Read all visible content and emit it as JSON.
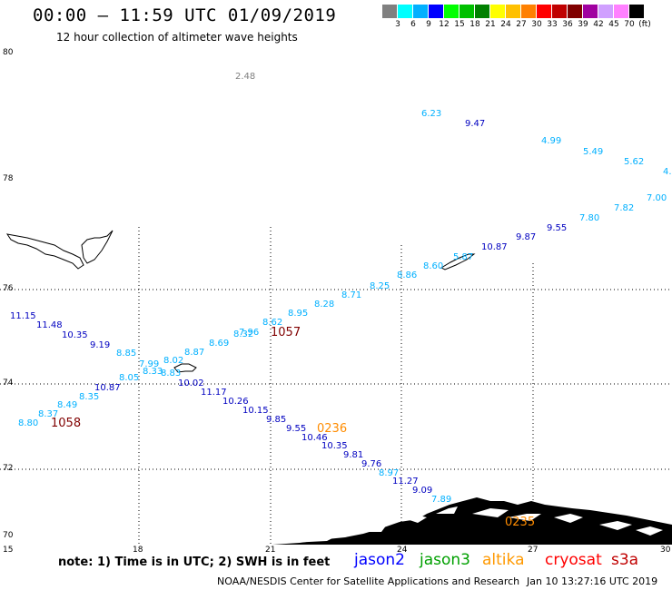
{
  "header": {
    "title": "00:00 – 11:59 UTC 01/09/2019",
    "subtitle": "12 hour collection of altimeter wave heights"
  },
  "colorbar": {
    "swatches": [
      "#808080",
      "#00ffff",
      "#00b0ff",
      "#0000ff",
      "#00ff00",
      "#00c000",
      "#008000",
      "#ffff00",
      "#ffc000",
      "#ff8000",
      "#ff0000",
      "#c00000",
      "#800000",
      "#a000a0",
      "#d0a0ff",
      "#ff80ff",
      "#000000"
    ],
    "ticks": [
      "3",
      "6",
      "9",
      "12",
      "15",
      "18",
      "21",
      "24",
      "27",
      "30",
      "33",
      "36",
      "39",
      "42",
      "45",
      "70",
      "(ft)"
    ]
  },
  "axes": {
    "lat_labels": [
      "80",
      "78",
      "76",
      "74",
      "72",
      "70"
    ],
    "lon_labels": [
      "15",
      "18",
      "21",
      "24",
      "27",
      "30"
    ]
  },
  "wave_heights": [
    {
      "v": "2.48",
      "c": "#808080"
    },
    {
      "v": "6.23",
      "c": "#00b0ff"
    },
    {
      "v": "9.47",
      "c": "#0000c0"
    },
    {
      "v": "4.99",
      "c": "#00b0ff"
    },
    {
      "v": "5.49",
      "c": "#00b0ff"
    },
    {
      "v": "5.62",
      "c": "#00b0ff"
    },
    {
      "v": "4.",
      "c": "#00b0ff"
    },
    {
      "v": "7.00",
      "c": "#00b0ff"
    },
    {
      "v": "7.82",
      "c": "#00b0ff"
    },
    {
      "v": "7.80",
      "c": "#00b0ff"
    },
    {
      "v": "9.55",
      "c": "#0000c0"
    },
    {
      "v": "9.87",
      "c": "#0000c0"
    },
    {
      "v": "10.87",
      "c": "#0000c0"
    },
    {
      "v": "5.87",
      "c": "#00b0ff"
    },
    {
      "v": "8.60",
      "c": "#00b0ff"
    },
    {
      "v": "8.86",
      "c": "#00b0ff"
    },
    {
      "v": "8.25",
      "c": "#00b0ff"
    },
    {
      "v": "8.71",
      "c": "#00b0ff"
    },
    {
      "v": "8.28",
      "c": "#00b0ff"
    },
    {
      "v": "8.95",
      "c": "#00b0ff"
    },
    {
      "v": "8.62",
      "c": "#00b0ff"
    },
    {
      "v": "7.96",
      "c": "#00b0ff"
    },
    {
      "v": "8.32",
      "c": "#00b0ff"
    },
    {
      "v": "8.69",
      "c": "#00b0ff"
    },
    {
      "v": "8.87",
      "c": "#00b0ff"
    },
    {
      "v": "8.02",
      "c": "#00b0ff"
    },
    {
      "v": "8.85",
      "c": "#00b0ff"
    },
    {
      "v": "7.99",
      "c": "#00b0ff"
    },
    {
      "v": "8.33",
      "c": "#00b0ff"
    },
    {
      "v": "8.83",
      "c": "#00b0ff"
    },
    {
      "v": "8.05",
      "c": "#00b0ff"
    },
    {
      "v": "10.87",
      "c": "#0000c0"
    },
    {
      "v": "8.35",
      "c": "#00b0ff"
    },
    {
      "v": "8.49",
      "c": "#00b0ff"
    },
    {
      "v": "8.37",
      "c": "#00b0ff"
    },
    {
      "v": "8.80",
      "c": "#00b0ff"
    },
    {
      "v": "11.15",
      "c": "#0000c0"
    },
    {
      "v": "11.48",
      "c": "#0000c0"
    },
    {
      "v": "10.35",
      "c": "#0000c0"
    },
    {
      "v": "9.19",
      "c": "#0000c0"
    },
    {
      "v": "10.02",
      "c": "#0000c0"
    },
    {
      "v": "11.17",
      "c": "#0000c0"
    },
    {
      "v": "10.26",
      "c": "#0000c0"
    },
    {
      "v": "10.15",
      "c": "#0000c0"
    },
    {
      "v": "9.85",
      "c": "#0000c0"
    },
    {
      "v": "9.55",
      "c": "#0000c0"
    },
    {
      "v": "10.46",
      "c": "#0000c0"
    },
    {
      "v": "10.35",
      "c": "#0000c0"
    },
    {
      "v": "9.81",
      "c": "#0000c0"
    },
    {
      "v": "9.76",
      "c": "#0000c0"
    },
    {
      "v": "8.97",
      "c": "#00b0ff"
    },
    {
      "v": "11.27",
      "c": "#0000c0"
    },
    {
      "v": "9.09",
      "c": "#0000c0"
    },
    {
      "v": "7.89",
      "c": "#00b0ff"
    }
  ],
  "pass_times": [
    {
      "v": "1057",
      "c": "#800000"
    },
    {
      "v": "1058",
      "c": "#800000"
    },
    {
      "v": "0236",
      "c": "#ff8c00"
    },
    {
      "v": "0235",
      "c": "#ff8c00"
    }
  ],
  "note": "note: 1) Time is in UTC; 2) SWH is in feet",
  "legend": [
    {
      "label": "jason2",
      "color": "#0000ff"
    },
    {
      "label": "jason3",
      "color": "#00a000"
    },
    {
      "label": "altika",
      "color": "#ff9900"
    },
    {
      "label": "cryosat",
      "color": "#ff0000"
    },
    {
      "label": "s3a",
      "color": "#c00000"
    }
  ],
  "footer": {
    "credit": "NOAA/NESDIS Center for Satellite Applications and Research",
    "timestamp": "Jan 10 13:27:16 UTC 2019"
  }
}
